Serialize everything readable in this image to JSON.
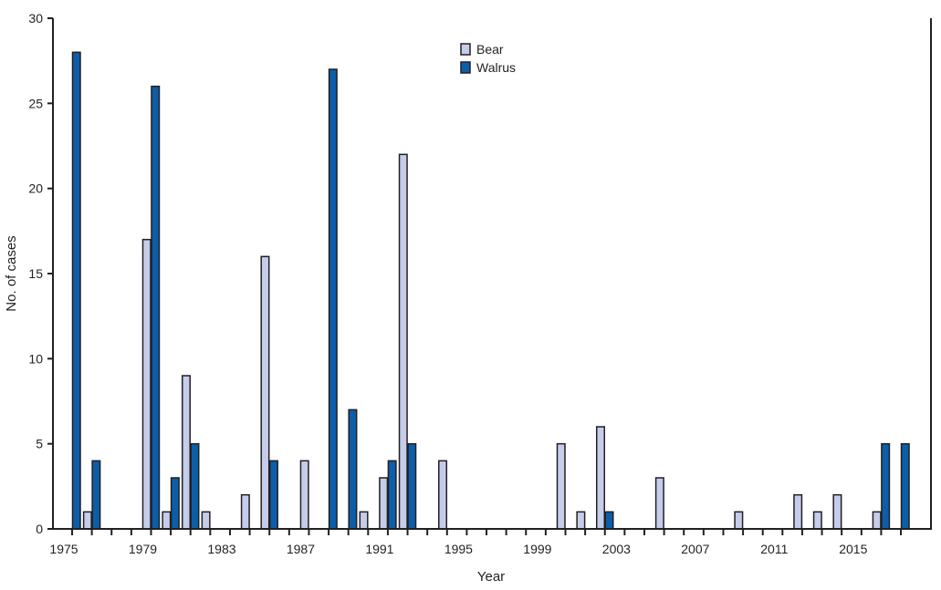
{
  "chart_data": {
    "type": "bar",
    "xlabel": "Year",
    "ylabel": "No. of cases",
    "ylim": [
      0,
      30
    ],
    "yticks": [
      0,
      5,
      10,
      15,
      20,
      25,
      30
    ],
    "xtick_labels": [
      "1975",
      "1979",
      "1983",
      "1987",
      "1991",
      "1995",
      "1999",
      "2003",
      "2007",
      "2011",
      "2015"
    ],
    "categories": [
      1975,
      1976,
      1977,
      1978,
      1979,
      1980,
      1981,
      1982,
      1983,
      1984,
      1985,
      1986,
      1987,
      1988,
      1989,
      1990,
      1991,
      1992,
      1993,
      1994,
      1995,
      1996,
      1997,
      1998,
      1999,
      2000,
      2001,
      2002,
      2003,
      2004,
      2005,
      2006,
      2007,
      2008,
      2009,
      2010,
      2011,
      2012,
      2013,
      2014,
      2015,
      2016,
      2017
    ],
    "series": [
      {
        "name": "Bear",
        "color": "#c5cdeb",
        "values": [
          0,
          1,
          0,
          0,
          17,
          1,
          9,
          1,
          0,
          2,
          16,
          0,
          4,
          0,
          0,
          1,
          3,
          22,
          0,
          4,
          0,
          0,
          0,
          0,
          0,
          5,
          1,
          6,
          0,
          0,
          3,
          0,
          0,
          0,
          1,
          0,
          0,
          2,
          1,
          2,
          0,
          1,
          0
        ]
      },
      {
        "name": "Walrus",
        "color": "#0c5ea8",
        "values": [
          28,
          4,
          0,
          0,
          26,
          3,
          5,
          0,
          0,
          0,
          4,
          0,
          0,
          27,
          7,
          0,
          4,
          5,
          0,
          0,
          0,
          0,
          0,
          0,
          0,
          0,
          0,
          1,
          0,
          0,
          0,
          0,
          0,
          0,
          0,
          0,
          0,
          0,
          0,
          0,
          0,
          5,
          5
        ]
      }
    ],
    "legend_position": "top-center",
    "grid": false
  }
}
